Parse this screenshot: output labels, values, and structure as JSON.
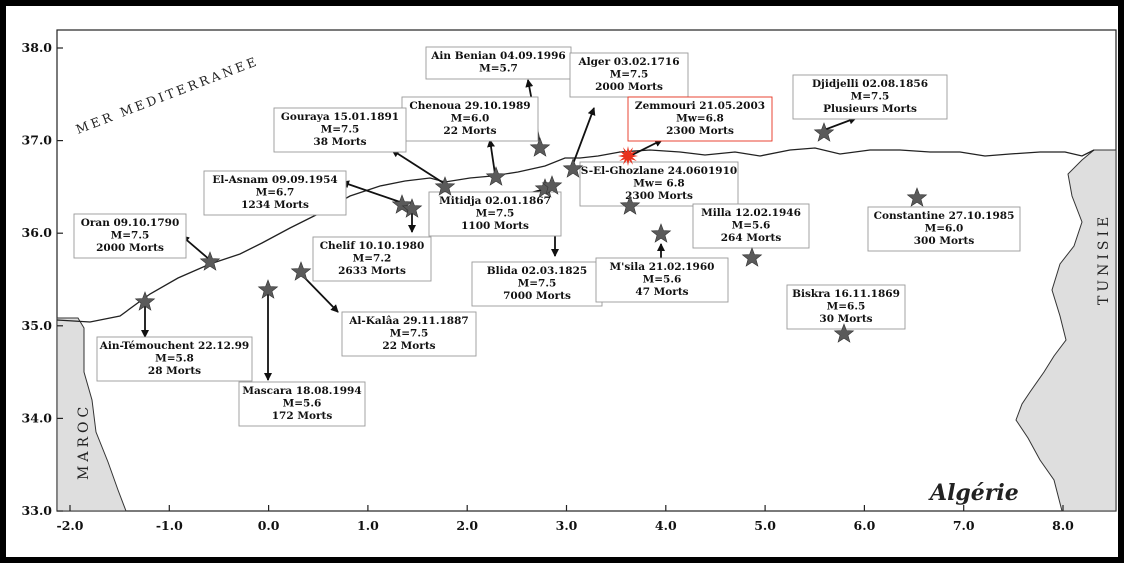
{
  "map": {
    "sea_label": "MER MEDITERRANEE",
    "country_label": "Algérie",
    "morocco_label": "MAROC",
    "tunisia_label": "TUNISIE",
    "y_ticks": [
      "38.0",
      "37.0",
      "36.0",
      "35.0",
      "34.0",
      "33.0"
    ],
    "x_ticks": [
      "-2.0",
      "-1.0",
      "0.0",
      "1.0",
      "2.0",
      "3.0",
      "4.0",
      "5.0",
      "6.0",
      "7.0",
      "8.0"
    ],
    "x_range": [
      -2.2,
      8.6
    ],
    "y_range": [
      33.0,
      38.2
    ],
    "colors": {
      "star": "#5a5a5a",
      "highlight": "#e8321e",
      "land_neighbor": "#dedede"
    }
  },
  "events": [
    {
      "id": "ain-benian",
      "lines": [
        "Ain Benian 04.09.1996",
        "M=5.7"
      ],
      "lon": 2.8,
      "lat": 36.92,
      "highlight": false
    },
    {
      "id": "alger",
      "lines": [
        "Alger 03.02.1716",
        "M=7.5",
        "2000 Morts"
      ],
      "lon": 3.1,
      "lat": 36.72,
      "highlight": false
    },
    {
      "id": "zemmouri",
      "lines": [
        "Zemmouri 21.05.2003",
        "Mw=6.8",
        "2300 Morts"
      ],
      "lon": 3.7,
      "lat": 36.83,
      "highlight": true
    },
    {
      "id": "djidjelli",
      "lines": [
        "Djidjelli 02.08.1856",
        "M=7.5",
        "Plusieurs Morts"
      ],
      "lon": 5.73,
      "lat": 37.1,
      "highlight": false
    },
    {
      "id": "chenoua",
      "lines": [
        "Chenoua 29.10.1989",
        "M=6.0",
        "22 Morts"
      ],
      "lon": 2.33,
      "lat": 36.62,
      "highlight": false
    },
    {
      "id": "gouraya",
      "lines": [
        "Gouraya 15.01.1891",
        "M=7.5",
        "38 Morts"
      ],
      "lon": 1.8,
      "lat": 36.51,
      "highlight": false
    },
    {
      "id": "el-asnam",
      "lines": [
        "El-Asnam 09.09.1954",
        "M=6.7",
        "1234 Morts"
      ],
      "lon": 1.37,
      "lat": 36.33,
      "highlight": false
    },
    {
      "id": "chelif",
      "lines": [
        "Chelif 10.10.1980",
        "M=7.2",
        "2633 Morts"
      ],
      "lon": 1.47,
      "lat": 36.28,
      "highlight": false
    },
    {
      "id": "mitidja",
      "lines": [
        "Mitidja 02.01.1867",
        "M=7.5",
        "1100 Morts"
      ],
      "lon": 2.77,
      "lat": 36.5,
      "highlight": false
    },
    {
      "id": "blida",
      "lines": [
        "Blida 02.03.1825",
        "M=7.5",
        "7000 Morts"
      ],
      "lon": 2.85,
      "lat": 36.47,
      "highlight": false
    },
    {
      "id": "s-el-ghozlane",
      "lines": [
        "S-El-Ghozlane 24.0601910",
        "Mw= 6.8",
        "2300 Morts"
      ],
      "lon": 3.7,
      "lat": 36.3,
      "highlight": false
    },
    {
      "id": "oran",
      "lines": [
        "Oran 09.10.1790",
        "M=7.5",
        "2000 Morts"
      ],
      "lon": -0.62,
      "lat": 35.72,
      "highlight": false
    },
    {
      "id": "ain-temouchent",
      "lines": [
        "Ain-Témouchent 22.12.99",
        "M=5.8",
        "28 Morts"
      ],
      "lon": -1.3,
      "lat": 35.25,
      "highlight": false
    },
    {
      "id": "mascara",
      "lines": [
        "Mascara 18.08.1994",
        "M=5.6",
        "172 Morts"
      ],
      "lon": 0.0,
      "lat": 35.4,
      "highlight": false
    },
    {
      "id": "al-kalaa",
      "lines": [
        "Al-Kalâa 29.11.1887",
        "M=7.5",
        "22 Morts"
      ],
      "lon": 0.33,
      "lat": 35.58,
      "highlight": false
    },
    {
      "id": "msila",
      "lines": [
        "M'sila 21.02.1960",
        "M=5.6",
        "47 Morts"
      ],
      "lon": 4.0,
      "lat": 36.0,
      "highlight": false
    },
    {
      "id": "milla",
      "lines": [
        "Milla 12.02.1946",
        "M=5.6",
        "264 Morts"
      ],
      "lon": 4.95,
      "lat": 35.75,
      "highlight": false
    },
    {
      "id": "constantine",
      "lines": [
        "Constantine 27.10.1985",
        "M=6.0",
        "300 Morts"
      ],
      "lon": 6.62,
      "lat": 36.4,
      "highlight": false
    },
    {
      "id": "biskra",
      "lines": [
        "Biskra 16.11.1869",
        "M=6.5",
        "30 Morts"
      ],
      "lon": 5.9,
      "lat": 34.9,
      "highlight": false
    }
  ]
}
